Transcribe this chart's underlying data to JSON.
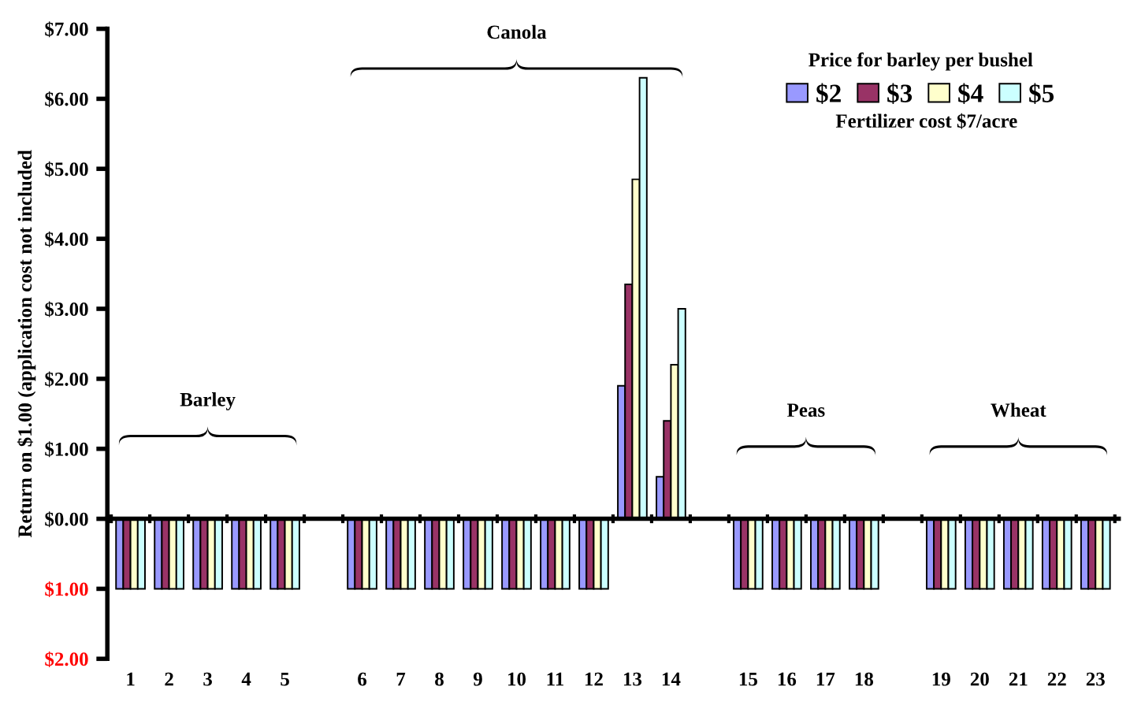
{
  "chart_data": {
    "type": "bar",
    "ylabel": "Return on $1.00 (application cost not included",
    "legend_title": "Price for barley per bushel",
    "annotations": [
      "Barley",
      "Canola",
      "Peas",
      "Wheat",
      "Fertilizer cost $7/acre"
    ],
    "categories": [
      "1",
      "2",
      "3",
      "4",
      "5",
      null,
      "6",
      "7",
      "8",
      "9",
      "10",
      "11",
      "12",
      "13",
      "14",
      null,
      "15",
      "16",
      "17",
      "18",
      null,
      "19",
      "20",
      "21",
      "22",
      "23"
    ],
    "series": [
      {
        "name": "$2",
        "color": "#9999ff",
        "values": [
          -1,
          -1,
          -1,
          -1,
          -1,
          null,
          -1,
          -1,
          -1,
          -1,
          -1,
          -1,
          -1,
          1.9,
          0.6,
          null,
          -1,
          -1,
          -1,
          -1,
          null,
          -1,
          -1,
          -1,
          -1,
          -1
        ]
      },
      {
        "name": "$3",
        "color": "#993366",
        "values": [
          -1,
          -1,
          -1,
          -1,
          -1,
          null,
          -1,
          -1,
          -1,
          -1,
          -1,
          -1,
          -1,
          3.35,
          1.4,
          null,
          -1,
          -1,
          -1,
          -1,
          null,
          -1,
          -1,
          -1,
          -1,
          -1
        ]
      },
      {
        "name": "$4",
        "color": "#ffffcc",
        "values": [
          -1,
          -1,
          -1,
          -1,
          -1,
          null,
          -1,
          -1,
          -1,
          -1,
          -1,
          -1,
          -1,
          4.85,
          2.2,
          null,
          -1,
          -1,
          -1,
          -1,
          null,
          -1,
          -1,
          -1,
          -1,
          -1
        ]
      },
      {
        "name": "$5",
        "color": "#ccffff",
        "values": [
          -1,
          -1,
          -1,
          -1,
          -1,
          null,
          -1,
          -1,
          -1,
          -1,
          -1,
          -1,
          -1,
          6.3,
          3.0,
          null,
          -1,
          -1,
          -1,
          -1,
          null,
          -1,
          -1,
          -1,
          -1,
          -1
        ]
      }
    ],
    "ylim": [
      -2,
      7
    ],
    "yticks": [
      {
        "value": -2,
        "label": "$2.00"
      },
      {
        "value": -1,
        "label": "$1.00"
      },
      {
        "value": 0,
        "label": "$0.00"
      },
      {
        "value": 1,
        "label": "$1.00"
      },
      {
        "value": 2,
        "label": "$2.00"
      },
      {
        "value": 3,
        "label": "$3.00"
      },
      {
        "value": 4,
        "label": "$4.00"
      },
      {
        "value": 5,
        "label": "$5.00"
      },
      {
        "value": 6,
        "label": "$6.00"
      },
      {
        "value": 7,
        "label": "$7.00"
      }
    ],
    "legend": "top right"
  }
}
